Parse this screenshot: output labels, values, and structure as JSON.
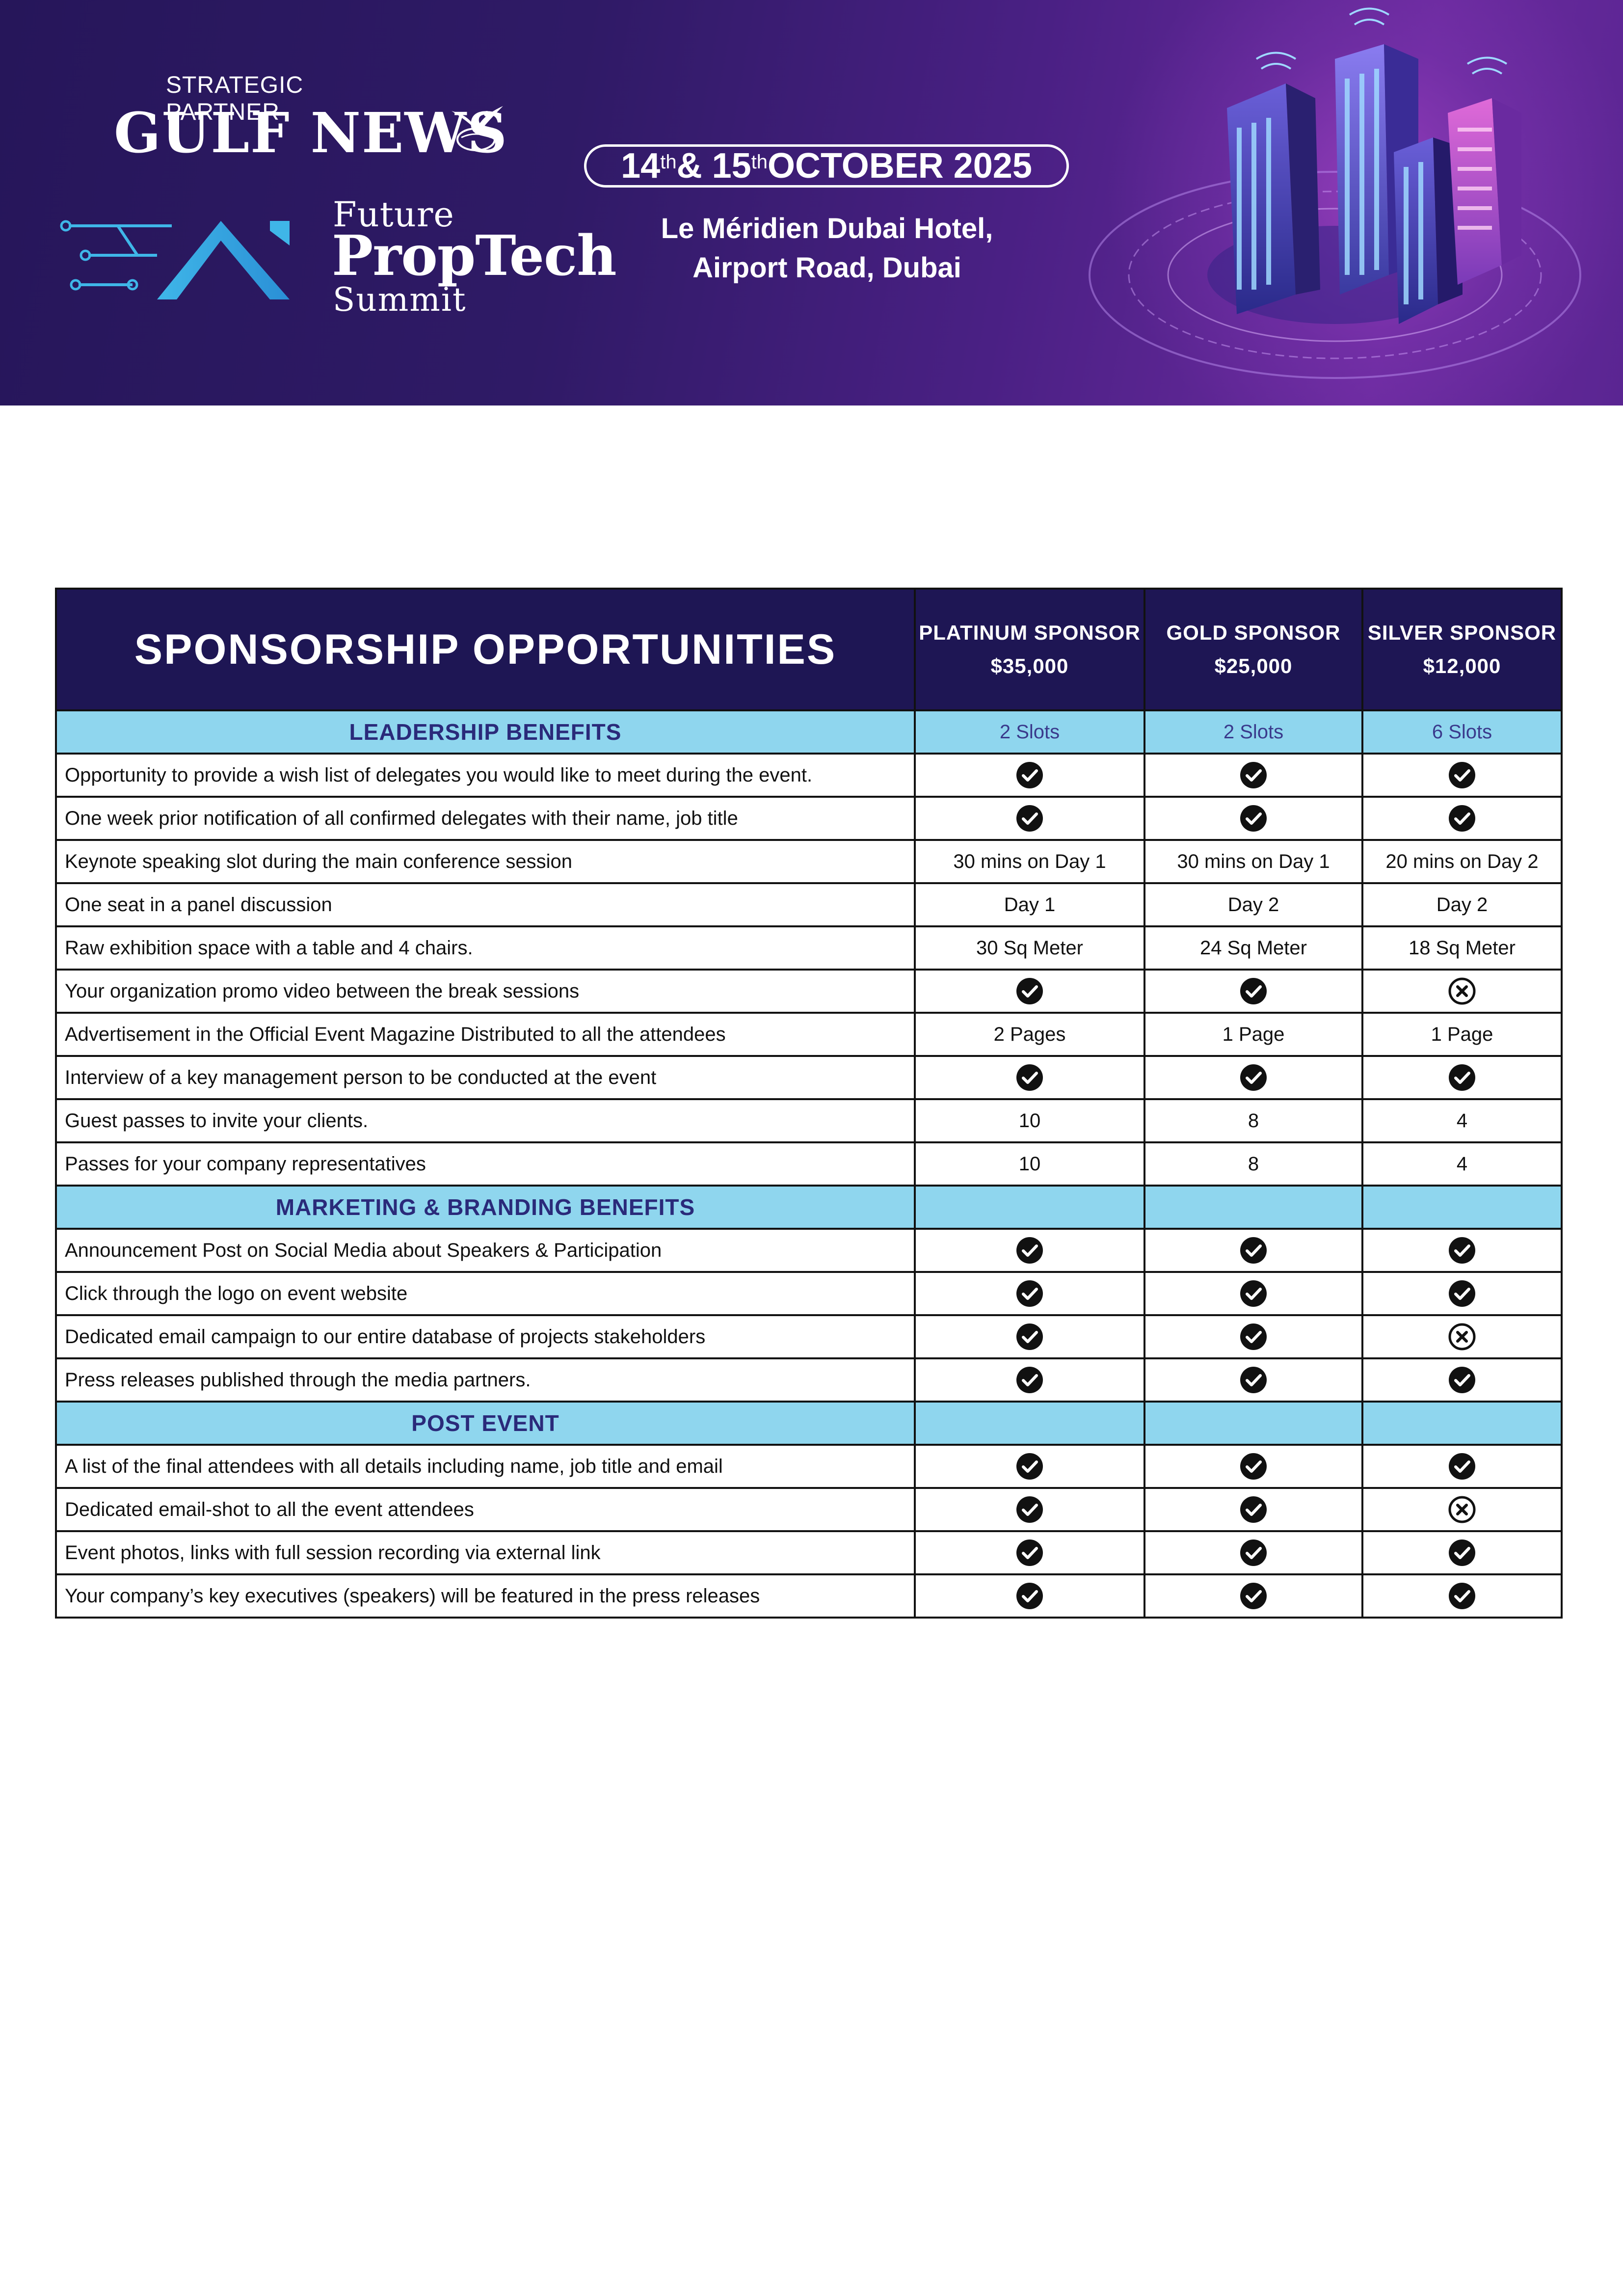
{
  "header": {
    "partner_label": "STRATEGIC PARTNER",
    "partner_name": "GULF NEWS",
    "brand_line1": "Future",
    "brand_line2": "PropTech",
    "brand_line3": "Summit",
    "date_day1": "14",
    "date_ord1": "th",
    "date_and": " & 15",
    "date_ord2": "th",
    "date_rest": " OCTOBER 2025",
    "venue_line1": "Le Méridien Dubai Hotel,",
    "venue_line2": "Airport Road, Dubai"
  },
  "table": {
    "title": "SPONSORSHIP OPPORTUNITIES",
    "tiers": [
      {
        "name": "PLATINUM SPONSOR",
        "price": "$35,000"
      },
      {
        "name": "GOLD SPONSOR",
        "price": "$25,000"
      },
      {
        "name": "SILVER SPONSOR",
        "price": "$12,000"
      }
    ],
    "sections": [
      {
        "title": "LEADERSHIP BENEFITS",
        "values": [
          "2 Slots",
          "2 Slots",
          "6 Slots"
        ],
        "rows": [
          {
            "feature": "Opportunity to provide a wish list of delegates you would like to meet during the event.",
            "values": [
              "check",
              "check",
              "check"
            ]
          },
          {
            "feature": "One week prior notification of all confirmed delegates with their name, job title",
            "values": [
              "check",
              "check",
              "check"
            ]
          },
          {
            "feature": "Keynote speaking slot during the main conference session",
            "values": [
              "30 mins on Day 1",
              "30 mins on Day 1",
              "20 mins on Day 2"
            ]
          },
          {
            "feature": "One seat in a panel discussion",
            "values": [
              "Day 1",
              "Day 2",
              "Day 2"
            ]
          },
          {
            "feature": "Raw exhibition space with a table and 4 chairs.",
            "values": [
              "30 Sq Meter",
              "24 Sq Meter",
              "18 Sq Meter"
            ]
          },
          {
            "feature": "Your organization promo video between the break sessions",
            "values": [
              "check",
              "check",
              "cross"
            ]
          },
          {
            "feature": "Advertisement in the Official Event Magazine Distributed to all the attendees",
            "values": [
              "2 Pages",
              "1 Page",
              "1 Page"
            ]
          },
          {
            "feature": "Interview of a key management person to be conducted at the event",
            "values": [
              "check",
              "check",
              "check"
            ]
          },
          {
            "feature": "Guest passes to invite your clients.",
            "values": [
              "10",
              "8",
              "4"
            ]
          },
          {
            "feature": "Passes for your company representatives",
            "values": [
              "10",
              "8",
              "4"
            ]
          }
        ]
      },
      {
        "title": "MARKETING & BRANDING BENEFITS",
        "values": [
          "",
          "",
          ""
        ],
        "rows": [
          {
            "feature": "Announcement Post on Social Media about Speakers & Participation",
            "values": [
              "check",
              "check",
              "check"
            ]
          },
          {
            "feature": "Click through the logo on event website",
            "values": [
              "check",
              "check",
              "check"
            ]
          },
          {
            "feature": "Dedicated email campaign to our entire database of projects stakeholders",
            "values": [
              "check",
              "check",
              "cross"
            ]
          },
          {
            "feature": "Press releases published through the media partners.",
            "values": [
              "check",
              "check",
              "check"
            ]
          }
        ]
      },
      {
        "title": "POST EVENT",
        "values": [
          "",
          "",
          ""
        ],
        "rows": [
          {
            "feature": "A list of the final attendees with all details including name, job title and email",
            "values": [
              "check",
              "check",
              "check"
            ]
          },
          {
            "feature": "Dedicated email-shot to all the event attendees",
            "values": [
              "check",
              "check",
              "cross"
            ]
          },
          {
            "feature": "Event photos, links with full session recording via external link",
            "values": [
              "check",
              "check",
              "check"
            ]
          },
          {
            "feature": "Your company’s key executives (speakers) will be featured in the press releases",
            "values": [
              "check",
              "check",
              "check"
            ]
          }
        ]
      }
    ]
  },
  "icons": {
    "included": "check-circle-icon",
    "excluded": "cross-circle-icon"
  },
  "colors": {
    "banner": "#2f1a66",
    "table_header": "#1e1654",
    "section_band": "#8fd6ee",
    "section_text": "#2a2a7a"
  }
}
